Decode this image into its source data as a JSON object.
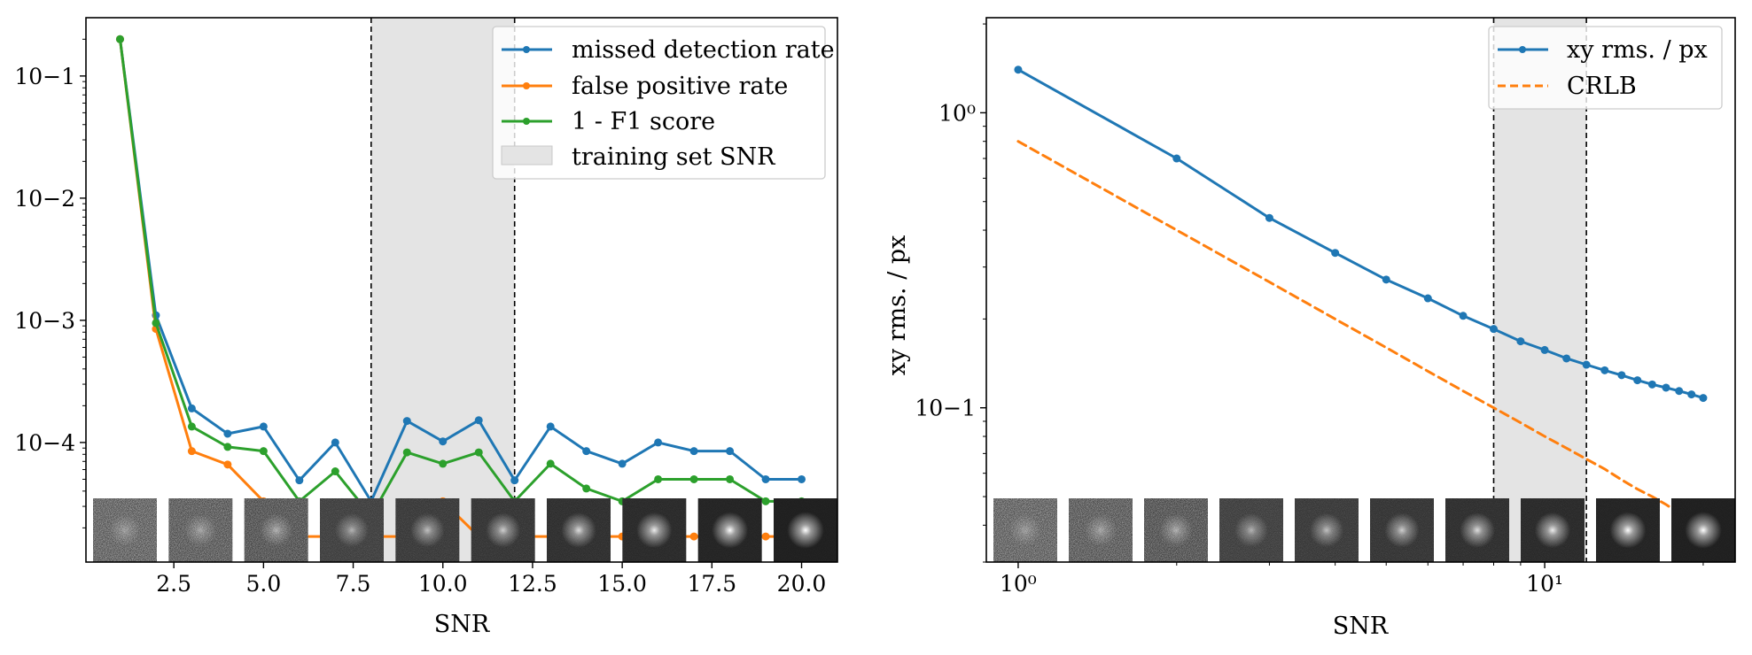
{
  "colors": {
    "blue": "#1f77b4",
    "orange": "#ff7f0e",
    "green": "#2ca02c",
    "training_band": "#e4e4e4",
    "vline": "#000000"
  },
  "chart_data": [
    {
      "type": "line",
      "yscale": "log",
      "xlim": [
        0.05,
        21.0
      ],
      "ylim": [
        1.05e-05,
        0.3
      ],
      "xticks": [
        2.5,
        5.0,
        7.5,
        10.0,
        12.5,
        15.0,
        17.5,
        20.0
      ],
      "xtick_labels": [
        "2.5",
        "5.0",
        "7.5",
        "10.0",
        "12.5",
        "15.0",
        "17.5",
        "20.0"
      ],
      "yticks": [
        0.1,
        0.01,
        0.001,
        0.0001
      ],
      "ytick_labels": [
        "10−1",
        "10−2",
        "10−3",
        "10−4"
      ],
      "xlabel": "SNR",
      "ylabel": "",
      "grid": false,
      "legend_position": "top-right",
      "training_band": [
        8,
        12
      ],
      "x": [
        1,
        2,
        3,
        4,
        5,
        6,
        7,
        8,
        9,
        10,
        11,
        12,
        13,
        14,
        15,
        16,
        17,
        18,
        19,
        20
      ],
      "series": [
        {
          "name": "missed detection rate",
          "color": "#1f77b4",
          "values": [
            0.2,
            0.0011,
            0.00019,
            0.000118,
            0.000135,
            4.9e-05,
            0.0001,
            3.3e-05,
            0.00015,
            0.000102,
            0.000152,
            4.9e-05,
            0.000135,
            8.5e-05,
            6.7e-05,
            0.0001,
            8.5e-05,
            8.5e-05,
            5e-05,
            5e-05
          ]
        },
        {
          "name": "false positive rate",
          "color": "#ff7f0e",
          "values": [
            0.2,
            0.00085,
            8.5e-05,
            6.6e-05,
            3.3e-05,
            1.7e-05,
            1.7e-05,
            1.7e-05,
            1.7e-05,
            3.3e-05,
            1.7e-05,
            1.7e-05,
            1.7e-05,
            1.7e-05,
            1.7e-05,
            1.7e-05,
            1.7e-05,
            1.7e-05,
            1.7e-05,
            1.7e-05
          ]
        },
        {
          "name": "1 - F1 score",
          "color": "#2ca02c",
          "values": [
            0.2,
            0.00095,
            0.000135,
            9.2e-05,
            8.5e-05,
            3.3e-05,
            5.8e-05,
            2.5e-05,
            8.3e-05,
            6.7e-05,
            8.3e-05,
            3.3e-05,
            6.7e-05,
            4.2e-05,
            3.3e-05,
            5e-05,
            5e-05,
            5e-05,
            3.3e-05,
            3.3e-05
          ]
        }
      ],
      "band_legend_label": "training set SNR",
      "thumbnails_count": 10
    },
    {
      "type": "line",
      "xscale": "log",
      "yscale": "log",
      "xlim": [
        0.87,
        23.0
      ],
      "ylim": [
        0.03,
        2.1
      ],
      "xticks": [
        1,
        10
      ],
      "xtick_labels": [
        "10⁰",
        "10¹"
      ],
      "yticks": [
        1,
        0.1
      ],
      "ytick_labels": [
        "10⁰",
        "10−1"
      ],
      "xlabel": "SNR",
      "ylabel": "xy rms. / px",
      "grid": false,
      "legend_position": "top-right",
      "training_band": [
        8,
        12
      ],
      "x": [
        1,
        2,
        3,
        4,
        5,
        6,
        7,
        8,
        9,
        10,
        11,
        12,
        13,
        14,
        15,
        16,
        17,
        18,
        19,
        20
      ],
      "series": [
        {
          "name": "xy rms. / px",
          "color": "#1f77b4",
          "style": "solid-marker",
          "values": [
            1.4,
            0.7,
            0.44,
            0.335,
            0.272,
            0.235,
            0.205,
            0.185,
            0.168,
            0.157,
            0.147,
            0.14,
            0.134,
            0.129,
            0.124,
            0.12,
            0.117,
            0.114,
            0.111,
            0.108
          ]
        },
        {
          "name": "CRLB",
          "color": "#ff7f0e",
          "style": "dashed",
          "values": [
            0.8,
            0.4,
            0.267,
            0.2,
            0.16,
            0.133,
            0.114,
            0.1,
            0.089,
            0.08,
            0.073,
            0.067,
            0.062,
            0.057,
            0.053,
            0.05,
            0.047,
            0.044,
            0.042,
            0.04
          ]
        }
      ],
      "thumbnails_count": 10
    }
  ]
}
